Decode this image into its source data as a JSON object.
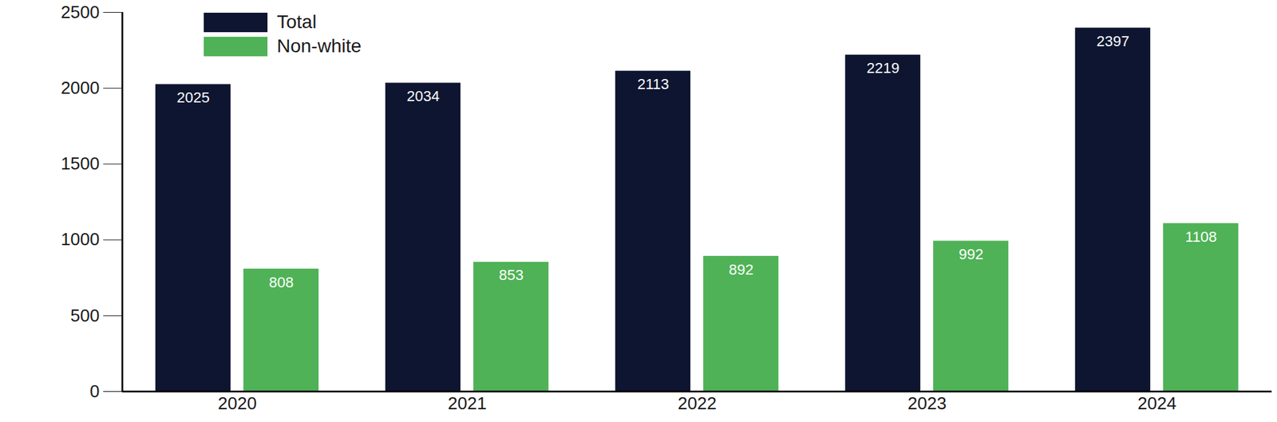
{
  "chart_data": {
    "type": "bar",
    "categories": [
      "2020",
      "2021",
      "2022",
      "2023",
      "2024"
    ],
    "series": [
      {
        "name": "Total",
        "color": "#0e1530",
        "values": [
          2025,
          2034,
          2113,
          2219,
          2397
        ]
      },
      {
        "name": "Non-white",
        "color": "#4fb256",
        "values": [
          808,
          853,
          892,
          992,
          1108
        ]
      }
    ],
    "ylim": [
      0,
      2500
    ],
    "yticks": [
      0,
      500,
      1000,
      1500,
      2000,
      2500
    ],
    "data_labels": true,
    "legend": "upper left",
    "grid": false
  }
}
